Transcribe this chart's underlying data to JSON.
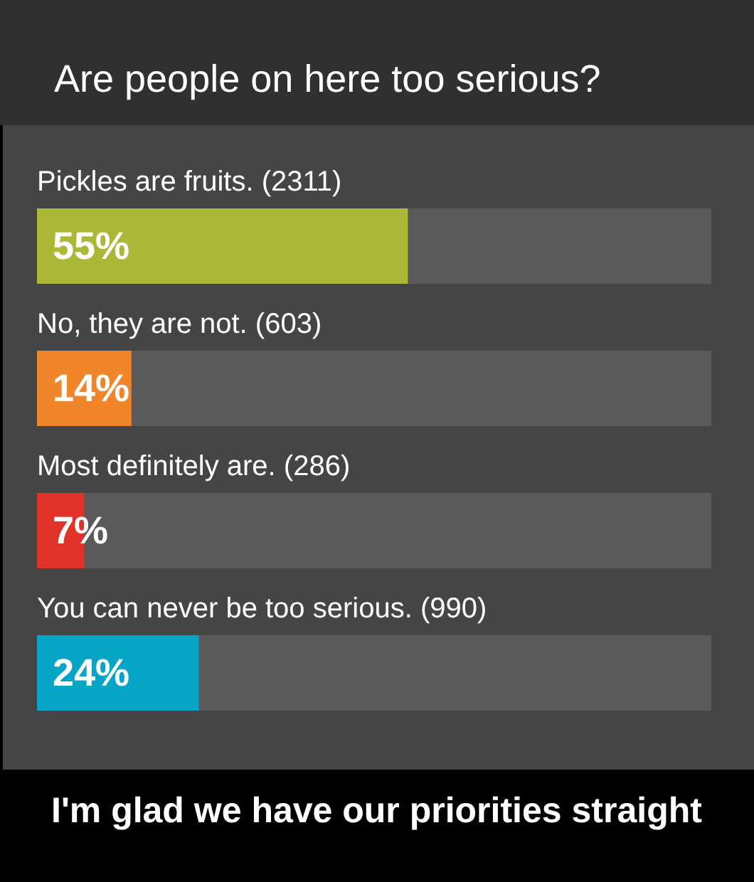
{
  "chart_data": {
    "type": "bar",
    "orientation": "horizontal",
    "title": "Are people on here too serious?",
    "categories": [
      "Pickles are fruits. (2311)",
      "No, they are not. (603)",
      "Most definitely are. (286)",
      "You can never be too serious. (990)"
    ],
    "values": [
      55,
      14,
      7,
      24
    ],
    "colors": [
      "#abb837",
      "#f0852a",
      "#e03228",
      "#05a5c8"
    ],
    "value_labels": [
      "55%",
      "14%",
      "7%",
      "24%"
    ],
    "xlim": [
      0,
      100
    ],
    "tick_labels": "y",
    "annotations": [
      "I'm glad we have our priorities straight"
    ]
  }
}
